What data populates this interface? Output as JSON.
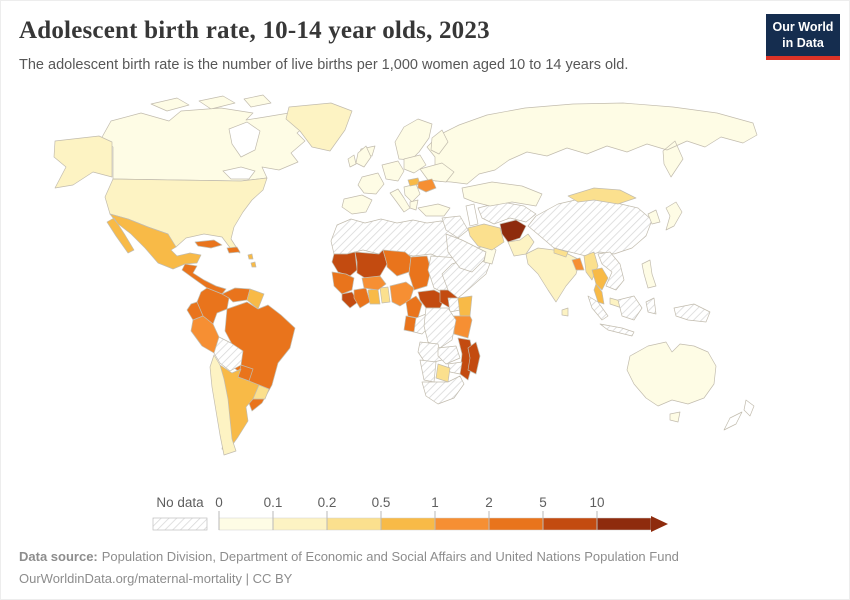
{
  "header": {
    "title": "Adolescent birth rate, 10-14 year olds, 2023",
    "subtitle": "The adolescent birth rate is the number of live births per 1,000 women aged 10 to 14 years old.",
    "logo": {
      "line1": "Our World",
      "line2": "in Data"
    }
  },
  "chart_data": {
    "type": "choropleth",
    "title": "Adolescent birth rate, 10-14 year olds, 2023",
    "unit": "live births per 1,000 women aged 10 to 14",
    "no_data_label": "No data",
    "bin_edges": [
      0,
      0.1,
      0.2,
      0.5,
      1,
      2,
      5,
      10
    ],
    "bin_labels": [
      "0",
      "0.1",
      "0.2",
      "0.5",
      "1",
      "2",
      "5",
      "10"
    ],
    "bin_colors": [
      "#fefce5",
      "#fdf3c3",
      "#fbe08e",
      "#f8ba47",
      "#f68f33",
      "#e9741c",
      "#c34b10",
      "#8e2b0d"
    ],
    "legend_position": "bottom",
    "regions": {
      "canada": 0,
      "usa": 1,
      "alaska": 1,
      "greenland": 1,
      "iceland": 0,
      "mexico": 3,
      "central-america": 5,
      "cuba": 5,
      "hispaniola": 5,
      "lesser-antilles": 3,
      "colombia": 5,
      "venezuela": 5,
      "guyanas": 3,
      "ecuador": 5,
      "peru": 4,
      "brazil": 5,
      "bolivia": "nodata",
      "paraguay": 5,
      "chile": 1,
      "argentina": 3,
      "uruguay": 2,
      "north-africa": "nodata",
      "mauritania": 6,
      "mali": 6,
      "niger": 5,
      "chad": 5,
      "sudan": "nodata",
      "senegal-guinea": 5,
      "sierra-leone-liberia": 6,
      "ivory-coast": 5,
      "ghana": 3,
      "togo-benin": 2,
      "burkina-faso": 4,
      "nigeria": 4,
      "cameroon": 5,
      "central-african-republic": 6,
      "south-sudan": 6,
      "ethiopia-somalia": "nodata",
      "kenya": 3,
      "uganda": "nodata",
      "tanzania": 4,
      "gabon": 5,
      "congo": "nodata",
      "drc": "nodata",
      "angola": "nodata",
      "zambia": "nodata",
      "mozambique": 6,
      "zimbabwe": "nodata",
      "botswana": 2,
      "namibia": "nodata",
      "south-africa": "nodata",
      "madagascar": 6,
      "scandinavia": 0,
      "uk-ireland": 0,
      "iberia": 0,
      "france": 0,
      "central-europe": 0,
      "poland-baltics": 0,
      "ukraine": 0,
      "italy": 0,
      "balkans": 0,
      "greece": 0,
      "romania": 4,
      "hungary": 3,
      "russia": 0,
      "kazakhstan": 0,
      "central-asia": "nodata",
      "turkey": 0,
      "levant-iraq": "nodata",
      "arabian-peninsula": "nodata",
      "oman": 0,
      "iran": 2,
      "afghanistan": 7,
      "pakistan": 1,
      "india": 1,
      "nepal": 2,
      "sri-lanka": 1,
      "bangladesh": 4,
      "myanmar": 2,
      "thailand": 3,
      "indochina": "nodata",
      "malaysia": 1,
      "china": "nodata",
      "mongolia": 2,
      "korea": 0,
      "japan": 0,
      "philippines": 0,
      "indonesia": "nodata",
      "new-guinea": "nodata",
      "australia": 0,
      "tasmania": 0,
      "new-zealand": "white"
    }
  },
  "footer": {
    "source_label": "Data source:",
    "source_text": "Population Division, Department of Economic and Social Affairs and United Nations Population Fund",
    "link_line": "OurWorldinData.org/maternal-mortality | CC BY"
  }
}
